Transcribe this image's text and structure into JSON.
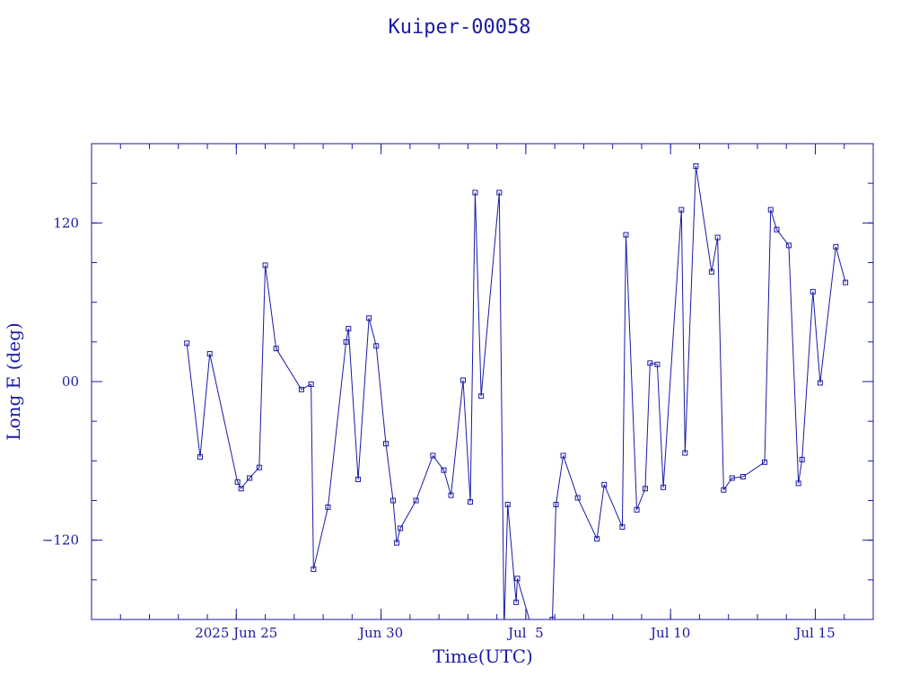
{
  "chart_data": {
    "type": "line",
    "title": "Kuiper-00058",
    "xlabel": "Time(UTC)",
    "ylabel": "Long E (deg)",
    "xlim": [
      "2025-06-20T00:00",
      "2025-07-17T00:00"
    ],
    "ylim": [
      -180,
      180
    ],
    "x_ticks": [
      {
        "date": "2025-06-25",
        "label": "2025 Jun 25"
      },
      {
        "date": "2025-06-30",
        "label": "Jun 30"
      },
      {
        "date": "2025-07-05",
        "label": "Jul  5"
      },
      {
        "date": "2025-07-10",
        "label": "Jul 10"
      },
      {
        "date": "2025-07-15",
        "label": "Jul 15"
      }
    ],
    "y_ticks": [
      {
        "value": 120,
        "label": "120"
      },
      {
        "value": 0,
        "label": "00"
      },
      {
        "value": -120,
        "label": "−120"
      }
    ],
    "grid": false,
    "colors": {
      "line": "#1a1aa6",
      "marker": "#1a1aa6"
    },
    "series": [
      {
        "x": [
          "2025-06-23T07:00",
          "2025-06-23T18:00",
          "2025-06-24T02:00",
          "2025-06-25T01:00",
          "2025-06-25T04:00",
          "2025-06-25T11:00",
          "2025-06-25T19:00",
          "2025-06-26T00:00",
          "2025-06-26T09:00",
          "2025-06-27T06:00",
          "2025-06-27T14:00",
          "2025-06-27T16:00",
          "2025-06-28T04:00",
          "2025-06-28T19:00",
          "2025-06-28T21:00",
          "2025-06-29T05:00",
          "2025-06-29T14:00",
          "2025-06-29T20:00",
          "2025-06-30T04:00",
          "2025-06-30T10:00",
          "2025-06-30T13:00",
          "2025-06-30T16:00",
          "2025-07-01T05:00",
          "2025-07-01T19:00",
          "2025-07-02T04:00",
          "2025-07-02T10:00",
          "2025-07-02T20:00",
          "2025-07-03T02:00",
          "2025-07-03T06:00",
          "2025-07-03T11:00",
          "2025-07-04T02:00",
          "2025-07-04T06:00",
          "2025-07-04T09:00",
          "2025-07-04T16:00",
          "2025-07-04T17:00",
          "2025-07-05T10:00",
          "2025-07-05T22:00",
          "2025-07-06T01:00",
          "2025-07-06T07:00",
          "2025-07-06T19:00",
          "2025-07-07T11:00",
          "2025-07-07T17:00",
          "2025-07-08T08:00",
          "2025-07-08T11:00",
          "2025-07-08T20:00",
          "2025-07-09T03:00",
          "2025-07-09T07:00",
          "2025-07-09T13:00",
          "2025-07-09T18:00",
          "2025-07-10T09:00",
          "2025-07-10T12:00",
          "2025-07-10T21:00",
          "2025-07-11T10:00",
          "2025-07-11T15:00",
          "2025-07-11T20:00",
          "2025-07-12T03:00",
          "2025-07-12T12:00",
          "2025-07-13T06:00",
          "2025-07-13T11:00",
          "2025-07-13T16:00",
          "2025-07-14T02:00",
          "2025-07-14T10:00",
          "2025-07-14T13:00",
          "2025-07-14T22:00",
          "2025-07-15T04:00",
          "2025-07-15T17:00",
          "2025-07-16T01:00"
        ],
        "y": [
          29,
          -57,
          21,
          -76,
          -81,
          -73,
          -65,
          88,
          25,
          -6,
          -2,
          -142,
          -95,
          30,
          40,
          -74,
          48,
          27,
          -47,
          -90,
          -122,
          -111,
          -90,
          -56,
          -67,
          -86,
          1,
          -91,
          143,
          -11,
          143,
          -188,
          -93,
          -167,
          -149,
          -202,
          -180,
          -93,
          -56,
          -88,
          -119,
          -78,
          -110,
          111,
          -97,
          -81,
          14,
          13,
          -80,
          130,
          -54,
          163,
          83,
          109,
          -82,
          -73,
          -72,
          -61,
          130,
          115,
          103,
          -77,
          -59,
          68,
          -1,
          102,
          75
        ]
      }
    ]
  }
}
